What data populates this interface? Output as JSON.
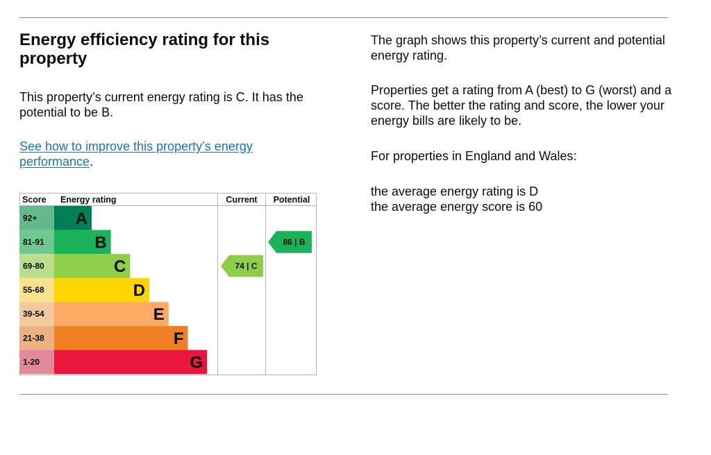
{
  "heading": "Energy efficiency rating for this property",
  "intro": "This property’s current energy rating is C. It has the potential to be B.",
  "link_text": "See how to improve this property’s energy performance",
  "link_suffix": ".",
  "right": {
    "p1": "The graph shows this property’s current and potential energy rating.",
    "p2": "Properties get a rating from A (best) to G (worst) and a score. The better the rating and score, the lower your energy bills are likely to be.",
    "p3": "For properties in England and Wales:",
    "avg_rating": "the average energy rating is D",
    "avg_score": "the average energy score is 60"
  },
  "chart_data": {
    "type": "table",
    "headers": {
      "score": "Score",
      "rating": "Energy rating",
      "current": "Current",
      "potential": "Potential"
    },
    "bands": [
      {
        "letter": "A",
        "range": "92+",
        "color": "#008054",
        "light": "#64b98d"
      },
      {
        "letter": "B",
        "range": "81-91",
        "color": "#19b459",
        "light": "#6fc98e"
      },
      {
        "letter": "C",
        "range": "69-80",
        "color": "#8dce46",
        "light": "#b9df8e"
      },
      {
        "letter": "D",
        "range": "55-68",
        "color": "#ffd500",
        "light": "#f7e28d"
      },
      {
        "letter": "E",
        "range": "39-54",
        "color": "#fcaa65",
        "light": "#f4c99f"
      },
      {
        "letter": "F",
        "range": "21-38",
        "color": "#ef8023",
        "light": "#edb283"
      },
      {
        "letter": "G",
        "range": "1-20",
        "color": "#e9153b",
        "light": "#e3879a"
      }
    ],
    "current": {
      "score": 74,
      "band": "C",
      "label": "74 | C"
    },
    "potential": {
      "score": 86,
      "band": "B",
      "label": "86 | B"
    }
  }
}
